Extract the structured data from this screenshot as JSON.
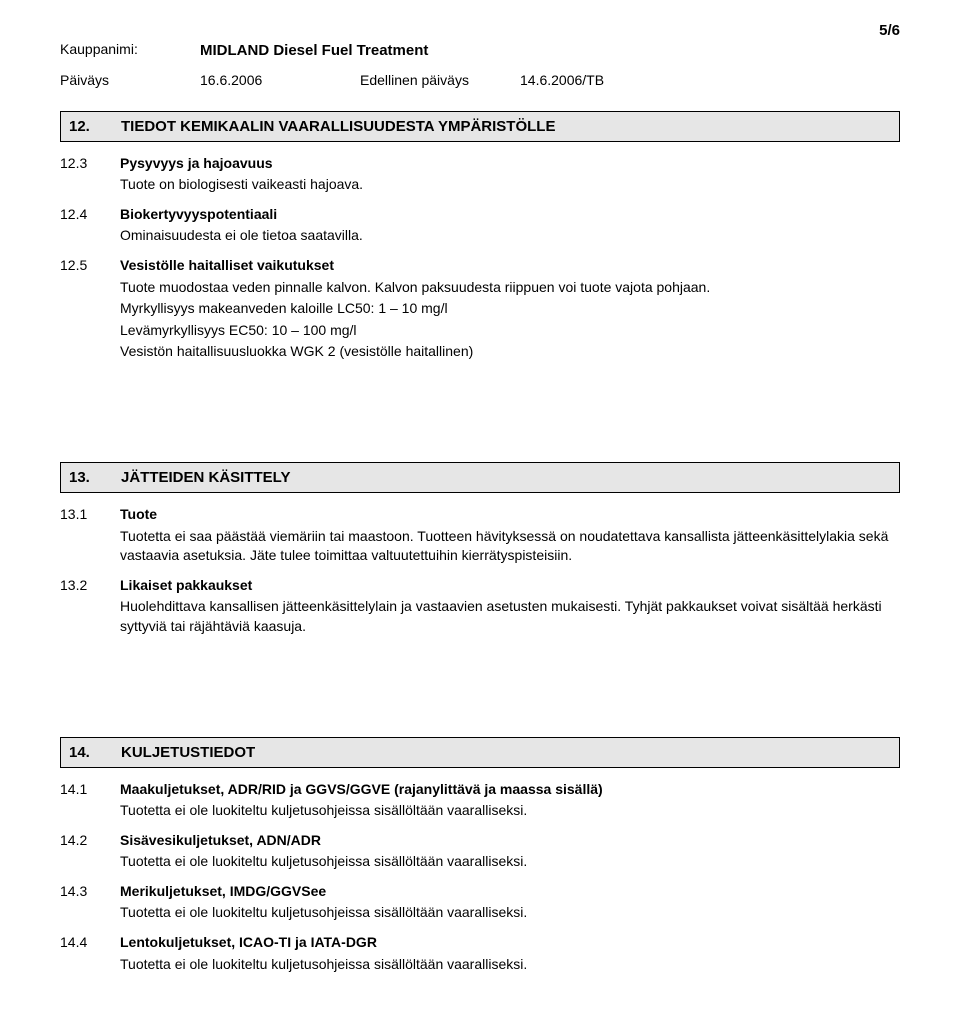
{
  "page_number": "5/6",
  "header": {
    "trade_name_label": "Kauppanimi:",
    "trade_name_value": "MIDLAND Diesel Fuel Treatment",
    "date_label": "Päiväys",
    "date_value": "16.6.2006",
    "prev_date_label": "Edellinen päiväys",
    "prev_date_value": "14.6.2006/TB"
  },
  "section12": {
    "number": "12.",
    "title": "TIEDOT KEMIKAALIN VAARALLISUUDESTA YMPÄRISTÖLLE",
    "sub3": {
      "number": "12.3",
      "title": "Pysyvyys ja hajoavuus",
      "text": "Tuote on biologisesti vaikeasti hajoava."
    },
    "sub4": {
      "number": "12.4",
      "title": "Biokertyvyyspotentiaali",
      "text": "Ominaisuudesta ei ole tietoa saatavilla."
    },
    "sub5": {
      "number": "12.5",
      "title": "Vesistölle haitalliset vaikutukset",
      "line1": "Tuote muodostaa veden pinnalle kalvon. Kalvon paksuudesta riippuen voi tuote vajota pohjaan.",
      "line2": "Myrkyllisyys makeanveden kaloille LC50: 1 – 10 mg/l",
      "line3": "Levämyrkyllisyys EC50: 10 – 100 mg/l",
      "line4": "Vesistön haitallisuusluokka WGK 2  (vesistölle haitallinen)"
    }
  },
  "section13": {
    "number": "13.",
    "title": "JÄTTEIDEN KÄSITTELY",
    "sub1": {
      "number": "13.1",
      "title": "Tuote",
      "text": "Tuotetta ei saa päästää viemäriin tai maastoon. Tuotteen hävityksessä on noudatettava kansallista jätteenkäsittelylakia sekä vastaavia asetuksia.  Jäte tulee toimittaa valtuutettuihin kierrätyspisteisiin."
    },
    "sub2": {
      "number": "13.2",
      "title": "Likaiset pakkaukset",
      "text": "Huolehdittava kansallisen jätteenkäsittelylain ja vastaavien asetusten mukaisesti. Tyhjät pakkaukset voivat sisältää herkästi syttyviä tai räjähtäviä kaasuja."
    }
  },
  "section14": {
    "number": "14.",
    "title": "KULJETUSTIEDOT",
    "sub1": {
      "number": "14.1",
      "title": "Maakuljetukset, ADR/RID ja GGVS/GGVE (rajanylittävä ja maassa sisällä)",
      "text": "Tuotetta ei ole luokiteltu kuljetusohjeissa sisällöltään vaaralliseksi."
    },
    "sub2": {
      "number": "14.2",
      "title": "Sisävesikuljetukset, ADN/ADR",
      "text": "Tuotetta ei ole luokiteltu kuljetusohjeissa sisällöltään vaaralliseksi."
    },
    "sub3": {
      "number": "14.3",
      "title": "Merikuljetukset, IMDG/GGVSee",
      "text": "Tuotetta ei ole luokiteltu kuljetusohjeissa sisällöltään vaaralliseksi."
    },
    "sub4": {
      "number": "14.4",
      "title": "Lentokuljetukset, ICAO-TI ja IATA-DGR",
      "text": "Tuotetta ei ole luokiteltu kuljetusohjeissa sisällöltään vaaralliseksi."
    }
  }
}
